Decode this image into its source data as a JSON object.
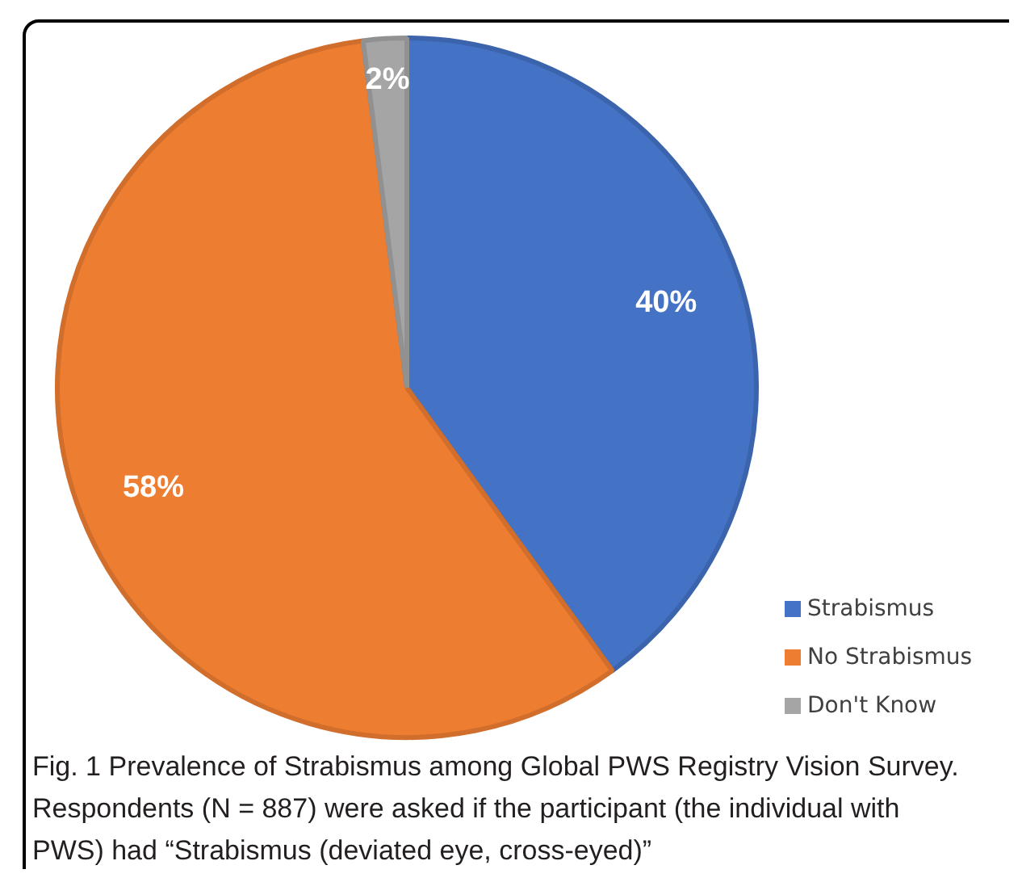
{
  "chart_data": {
    "type": "pie",
    "categories": [
      "Strabismus",
      "No Strabismus",
      "Don't Know"
    ],
    "values": [
      40,
      58,
      2
    ],
    "colors": [
      "#4472c4",
      "#ed7d31",
      "#a5a5a5"
    ],
    "value_labels": [
      "40%",
      "58%",
      "2%"
    ],
    "legend": "bottom right",
    "annotations": [
      "Fig. 1 Prevalence of Strabismus among Global PWS Registry Vision Survey. Respondents (N = 887) were asked if the participant (the individual with PWS) had “Strabismus (deviated eye, cross-eyed)”"
    ]
  }
}
